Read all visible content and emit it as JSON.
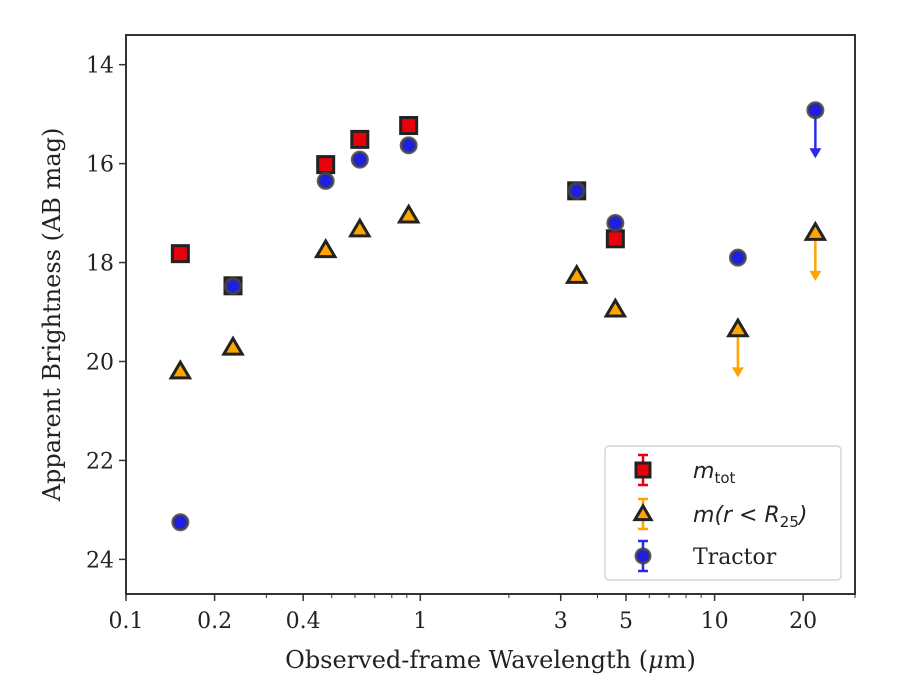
{
  "chart_data": {
    "type": "scatter",
    "xscale": "log",
    "yaxis_inverted": true,
    "xlabel_prefix": "Observed-frame Wavelength (",
    "xlabel_unit_mu": "μ",
    "xlabel_suffix": "m)",
    "ylabel": "Apparent Brightness (AB mag)",
    "xlim": [
      0.1,
      30
    ],
    "ylim": [
      24.7,
      13.4
    ],
    "xticks": [
      {
        "value": 0.1,
        "label": "0.1"
      },
      {
        "value": 0.2,
        "label": "0.2"
      },
      {
        "value": 0.4,
        "label": "0.4"
      },
      {
        "value": 1,
        "label": "1"
      },
      {
        "value": 3,
        "label": "3"
      },
      {
        "value": 5,
        "label": "5"
      },
      {
        "value": 10,
        "label": "10"
      },
      {
        "value": 20,
        "label": "20"
      }
    ],
    "yticks": [
      {
        "value": 14,
        "label": "14"
      },
      {
        "value": 16,
        "label": "16"
      },
      {
        "value": 18,
        "label": "18"
      },
      {
        "value": 20,
        "label": "20"
      },
      {
        "value": 22,
        "label": "22"
      },
      {
        "value": 24,
        "label": "24"
      }
    ],
    "series": [
      {
        "key": "mtot",
        "marker": "square",
        "color": "#e8000b",
        "errcolor": "#e8000b",
        "legend_italic": "m",
        "legend_sub": "tot",
        "legend_rest": "",
        "points": [
          {
            "x": 0.153,
            "y": 17.82
          },
          {
            "x": 0.231,
            "y": 18.47
          },
          {
            "x": 0.477,
            "y": 16.02
          },
          {
            "x": 0.623,
            "y": 15.51
          },
          {
            "x": 0.913,
            "y": 15.23
          },
          {
            "x": 3.4,
            "y": 16.55
          },
          {
            "x": 4.6,
            "y": 17.52
          }
        ]
      },
      {
        "key": "mr25",
        "marker": "triangle",
        "color": "#ffa500",
        "errcolor": "#ffa500",
        "legend_italic": "m",
        "legend_sub": "25",
        "legend_rest": "(r < R",
        "legend_close": ")",
        "points": [
          {
            "x": 0.153,
            "y": 20.2
          },
          {
            "x": 0.231,
            "y": 19.72
          },
          {
            "x": 0.477,
            "y": 17.75
          },
          {
            "x": 0.623,
            "y": 17.33
          },
          {
            "x": 0.913,
            "y": 17.05
          },
          {
            "x": 3.4,
            "y": 18.27
          },
          {
            "x": 4.6,
            "y": 18.95
          },
          {
            "x": 12.0,
            "y": 19.35,
            "upper_limit": true
          },
          {
            "x": 22.0,
            "y": 17.4,
            "upper_limit": true
          }
        ]
      },
      {
        "key": "tractor",
        "marker": "circle",
        "color": "#1f1fe0",
        "errcolor": "#2a2ae8",
        "legend_label": "Tractor",
        "points": [
          {
            "x": 0.153,
            "y": 23.25
          },
          {
            "x": 0.231,
            "y": 18.48
          },
          {
            "x": 0.477,
            "y": 16.35
          },
          {
            "x": 0.623,
            "y": 15.92
          },
          {
            "x": 0.913,
            "y": 15.63
          },
          {
            "x": 3.4,
            "y": 16.55
          },
          {
            "x": 4.6,
            "y": 17.2
          },
          {
            "x": 12.0,
            "y": 17.9
          },
          {
            "x": 22.0,
            "y": 14.92,
            "upper_limit": true
          }
        ]
      }
    ],
    "legend_position": "lower-right",
    "grid": false
  }
}
